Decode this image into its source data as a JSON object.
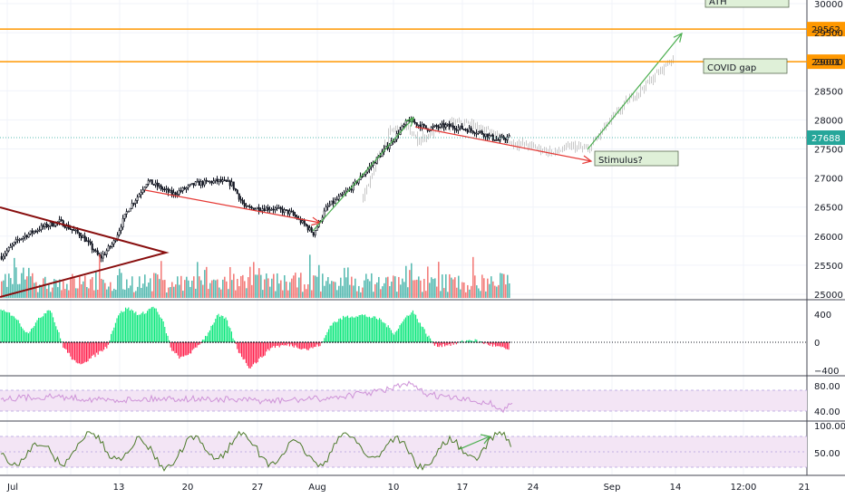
{
  "chart_data": [
    {
      "type": "candlestick",
      "ylim": [
        24950,
        30050
      ],
      "y_ticks": [
        "30000",
        "29500",
        "29000",
        "28500",
        "28000",
        "27500",
        "27000",
        "26500",
        "26000",
        "25500",
        "25000"
      ],
      "x_ticks": [
        "Jul",
        "13",
        "20",
        "27",
        "Aug",
        "10",
        "17",
        "24",
        "Sep",
        "14",
        "12:00",
        "21"
      ],
      "current_price": "27688",
      "levels": [
        {
          "label": "29562",
          "value": 29562,
          "color": "#ff9800"
        },
        {
          "label": "29001",
          "value": 29001,
          "color": "#ff9800"
        }
      ],
      "annotations": [
        {
          "text": "ATH"
        },
        {
          "text": "COVID gap"
        },
        {
          "text": "Stimulus?"
        }
      ],
      "up_color": "#26a69a",
      "down_color": "#ef5350",
      "projection_color": "#c8c8c8",
      "arrow_up_color": "#4caf50",
      "arrow_down_color": "#e53935",
      "triangle_color": "#880e0e"
    },
    {
      "type": "histogram",
      "y_ticks": [
        "400",
        "0",
        "−400"
      ],
      "pos_color": "#00e676",
      "neg_color": "#ff1744"
    },
    {
      "type": "line",
      "y_ticks": [
        "80.00",
        "40.00"
      ],
      "line_color": "#ce93d8",
      "band_color": "#f3e5f5"
    },
    {
      "type": "line",
      "y_ticks": [
        "100.00",
        "50.00"
      ],
      "line_color": "#4c7a2a",
      "band_color": "#f3e5f5",
      "arrow_color": "#4caf50"
    }
  ]
}
